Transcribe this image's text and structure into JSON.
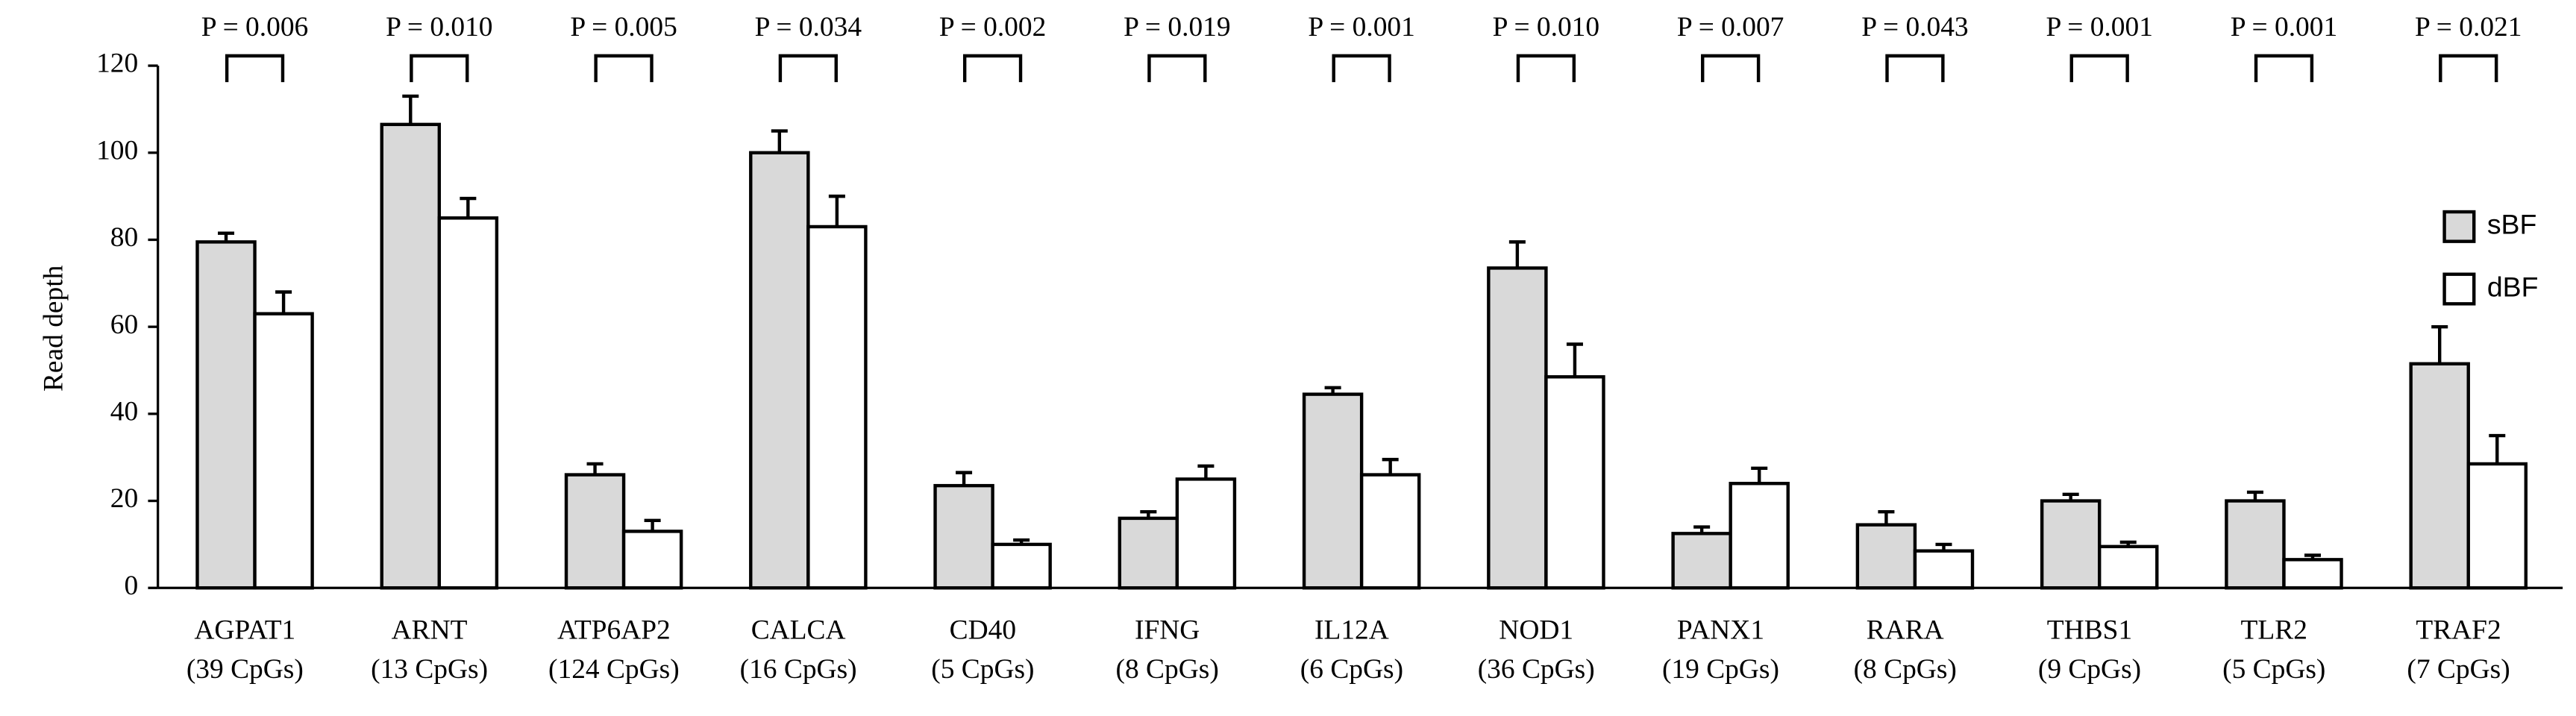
{
  "chart_data": {
    "type": "bar",
    "y_label": "Read depth",
    "categories": [
      "AGPAT1",
      "ARNT",
      "ATP6AP2",
      "CALCA",
      "CD40",
      "IFNG",
      "IL12A",
      "NOD1",
      "PANX1",
      "RARA",
      "THBS1",
      "TLR2",
      "TRAF2"
    ],
    "category_sublabels": [
      "(39 CpGs)",
      "(13 CpGs)",
      "(124 CpGs)",
      "(16 CpGs)",
      "(5 CpGs)",
      "(8 CpGs)",
      "(6 CpGs)",
      "(36 CpGs)",
      "(19 CpGs)",
      "(8 CpGs)",
      "(9 CpGs)",
      "(5 CpGs)",
      "(7 CpGs)"
    ],
    "p_values": [
      "P = 0.006",
      "P = 0.010",
      "P = 0.005",
      "P = 0.034",
      "P = 0.002",
      "P = 0.019",
      "P = 0.001",
      "P = 0.010",
      "P = 0.007",
      "P = 0.043",
      "P = 0.001",
      "P = 0.001",
      "P = 0.021"
    ],
    "series": [
      {
        "name": "sBF",
        "color": "#d9d9d9",
        "values": [
          79.5,
          106.5,
          26,
          100,
          23.5,
          16,
          44.5,
          73.5,
          12.5,
          14.5,
          20,
          20,
          51.5
        ],
        "errors": [
          2,
          6.5,
          2.5,
          5,
          3,
          1.5,
          1.5,
          6,
          1.5,
          3,
          1.5,
          2,
          8.5
        ]
      },
      {
        "name": "dBF",
        "color": "#ffffff",
        "values": [
          63,
          85,
          13,
          83,
          10,
          25,
          26,
          48.5,
          24,
          8.5,
          9.5,
          6.5,
          28.5
        ],
        "errors": [
          5,
          4.5,
          2.5,
          7,
          1,
          3,
          3.5,
          7.5,
          3.5,
          1.5,
          1,
          1,
          6.5
        ]
      }
    ],
    "ylim": [
      0,
      120
    ],
    "yticks": [
      0,
      20,
      40,
      60,
      80,
      100,
      120
    ],
    "grid": false,
    "legend": "right"
  }
}
